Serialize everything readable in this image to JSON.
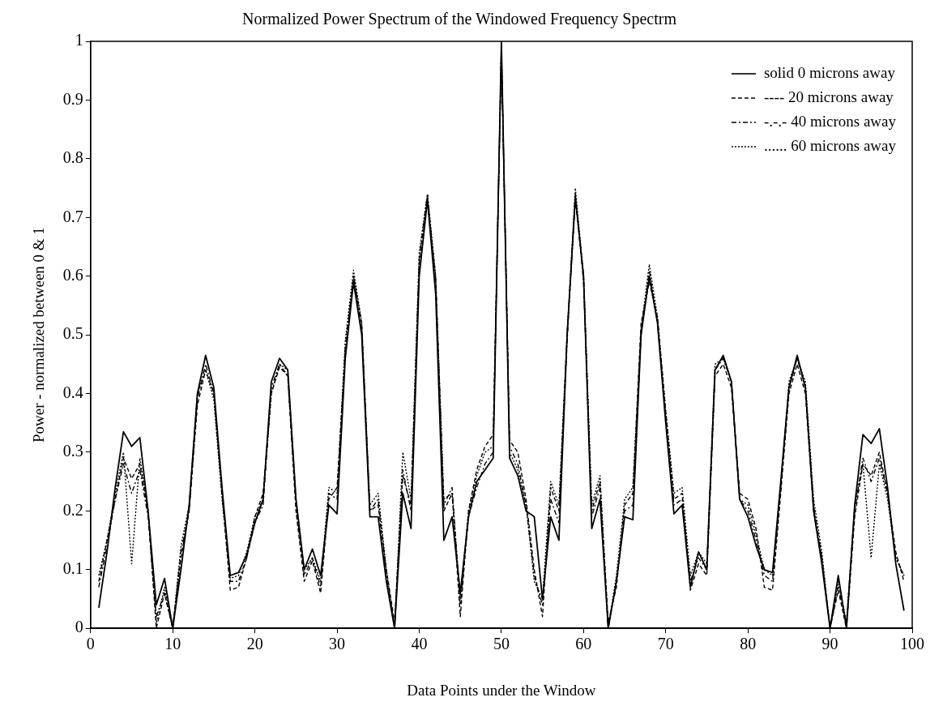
{
  "chart_data": {
    "type": "line",
    "title": "Normalized Power Spectrum of the Windowed Frequency Spectrm",
    "xlabel": "Data Points under the Window",
    "ylabel": "Power - normalized between 0 & 1",
    "x": [
      1,
      2,
      3,
      4,
      5,
      6,
      7,
      8,
      9,
      10,
      11,
      12,
      13,
      14,
      15,
      16,
      17,
      18,
      19,
      20,
      21,
      22,
      23,
      24,
      25,
      26,
      27,
      28,
      29,
      30,
      31,
      32,
      33,
      34,
      35,
      36,
      37,
      38,
      39,
      40,
      41,
      42,
      43,
      44,
      45,
      46,
      47,
      48,
      49,
      50,
      51,
      52,
      53,
      54,
      55,
      56,
      57,
      58,
      59,
      60,
      61,
      62,
      63,
      64,
      65,
      66,
      67,
      68,
      69,
      70,
      71,
      72,
      73,
      74,
      75,
      76,
      77,
      78,
      79,
      80,
      81,
      82,
      83,
      84,
      85,
      86,
      87,
      88,
      89,
      90,
      91,
      92,
      93,
      94,
      95,
      96,
      97,
      98,
      99
    ],
    "xlim": [
      0,
      100
    ],
    "xticks": [
      0,
      10,
      20,
      30,
      40,
      50,
      60,
      70,
      80,
      90,
      100
    ],
    "ylim": [
      0,
      1
    ],
    "yticks": [
      0,
      0.1,
      0.2,
      0.3,
      0.4,
      0.5,
      0.6,
      0.7,
      0.8,
      0.9,
      1
    ],
    "grid": false,
    "legend": "top right",
    "marker": "none",
    "series": [
      {
        "name": "solid 0 microns away",
        "color": "#000000",
        "line_style": "solid",
        "values": [
          0.035,
          0.13,
          0.24,
          0.335,
          0.31,
          0.325,
          0.2,
          0.04,
          0.085,
          0.0,
          0.1,
          0.21,
          0.4,
          0.465,
          0.41,
          0.24,
          0.09,
          0.095,
          0.125,
          0.18,
          0.22,
          0.42,
          0.46,
          0.44,
          0.22,
          0.1,
          0.135,
          0.09,
          0.21,
          0.195,
          0.46,
          0.59,
          0.5,
          0.19,
          0.19,
          0.08,
          0.0,
          0.23,
          0.17,
          0.6,
          0.73,
          0.57,
          0.15,
          0.19,
          0.06,
          0.19,
          0.25,
          0.27,
          0.29,
          1.0,
          0.29,
          0.26,
          0.2,
          0.19,
          0.05,
          0.19,
          0.15,
          0.5,
          0.735,
          0.6,
          0.17,
          0.22,
          0.0,
          0.08,
          0.19,
          0.185,
          0.5,
          0.6,
          0.52,
          0.35,
          0.195,
          0.21,
          0.07,
          0.13,
          0.1,
          0.44,
          0.465,
          0.42,
          0.22,
          0.19,
          0.14,
          0.1,
          0.095,
          0.25,
          0.41,
          0.465,
          0.41,
          0.2,
          0.11,
          0.0,
          0.09,
          0.0,
          0.21,
          0.33,
          0.315,
          0.34,
          0.24,
          0.11,
          0.03
        ]
      },
      {
        "name": "---- 20 microns away",
        "color": "#000000",
        "line_style": "dashed",
        "values": [
          0.08,
          0.15,
          0.22,
          0.29,
          0.255,
          0.28,
          0.2,
          0.0,
          0.06,
          0.0,
          0.12,
          0.2,
          0.38,
          0.44,
          0.4,
          0.23,
          0.065,
          0.07,
          0.12,
          0.19,
          0.23,
          0.4,
          0.445,
          0.43,
          0.2,
          0.08,
          0.115,
          0.06,
          0.22,
          0.24,
          0.47,
          0.6,
          0.52,
          0.2,
          0.21,
          0.1,
          0.01,
          0.26,
          0.21,
          0.62,
          0.73,
          0.6,
          0.2,
          0.23,
          0.02,
          0.2,
          0.27,
          0.31,
          0.33,
          0.98,
          0.32,
          0.3,
          0.22,
          0.1,
          0.02,
          0.24,
          0.2,
          0.5,
          0.73,
          0.6,
          0.2,
          0.25,
          0.01,
          0.07,
          0.21,
          0.23,
          0.52,
          0.59,
          0.53,
          0.37,
          0.22,
          0.23,
          0.065,
          0.11,
          0.09,
          0.43,
          0.45,
          0.41,
          0.23,
          0.22,
          0.17,
          0.07,
          0.065,
          0.23,
          0.4,
          0.45,
          0.4,
          0.2,
          0.12,
          0.0,
          0.065,
          0.0,
          0.19,
          0.28,
          0.26,
          0.3,
          0.23,
          0.13,
          0.08
        ]
      },
      {
        "name": "-.-.- 40 microns away",
        "color": "#000000",
        "line_style": "dashdot",
        "values": [
          0.07,
          0.14,
          0.22,
          0.28,
          0.23,
          0.27,
          0.19,
          0.02,
          0.06,
          0.0,
          0.13,
          0.2,
          0.39,
          0.45,
          0.4,
          0.23,
          0.08,
          0.08,
          0.12,
          0.18,
          0.21,
          0.41,
          0.45,
          0.43,
          0.21,
          0.09,
          0.12,
          0.07,
          0.23,
          0.22,
          0.48,
          0.6,
          0.51,
          0.2,
          0.22,
          0.09,
          0.0,
          0.27,
          0.2,
          0.63,
          0.74,
          0.59,
          0.21,
          0.24,
          0.04,
          0.19,
          0.24,
          0.28,
          0.3,
          0.99,
          0.31,
          0.28,
          0.21,
          0.09,
          0.04,
          0.22,
          0.18,
          0.49,
          0.74,
          0.59,
          0.19,
          0.24,
          0.0,
          0.08,
          0.2,
          0.21,
          0.5,
          0.61,
          0.52,
          0.36,
          0.21,
          0.22,
          0.08,
          0.12,
          0.1,
          0.44,
          0.46,
          0.42,
          0.22,
          0.2,
          0.15,
          0.09,
          0.08,
          0.24,
          0.41,
          0.46,
          0.41,
          0.21,
          0.12,
          0.0,
          0.07,
          0.01,
          0.2,
          0.29,
          0.25,
          0.29,
          0.23,
          0.12,
          0.09
        ]
      },
      {
        "name": "...... 60 microns away",
        "color": "#000000",
        "line_style": "dotted",
        "values": [
          0.09,
          0.15,
          0.23,
          0.3,
          0.11,
          0.29,
          0.2,
          0.01,
          0.07,
          0.0,
          0.14,
          0.21,
          0.4,
          0.44,
          0.39,
          0.22,
          0.085,
          0.09,
          0.13,
          0.19,
          0.22,
          0.4,
          0.45,
          0.44,
          0.22,
          0.1,
          0.12,
          0.08,
          0.24,
          0.23,
          0.49,
          0.61,
          0.52,
          0.21,
          0.23,
          0.1,
          0.0,
          0.3,
          0.22,
          0.64,
          0.74,
          0.6,
          0.22,
          0.23,
          0.05,
          0.2,
          0.26,
          0.3,
          0.31,
          0.99,
          0.3,
          0.27,
          0.21,
          0.08,
          0.05,
          0.25,
          0.21,
          0.5,
          0.75,
          0.6,
          0.21,
          0.26,
          0.0,
          0.09,
          0.22,
          0.24,
          0.51,
          0.62,
          0.53,
          0.37,
          0.23,
          0.24,
          0.09,
          0.13,
          0.11,
          0.45,
          0.46,
          0.42,
          0.22,
          0.21,
          0.16,
          0.1,
          0.09,
          0.24,
          0.42,
          0.46,
          0.42,
          0.22,
          0.13,
          0.0,
          0.08,
          0.01,
          0.21,
          0.28,
          0.12,
          0.28,
          0.22,
          0.12,
          0.09
        ]
      }
    ]
  }
}
